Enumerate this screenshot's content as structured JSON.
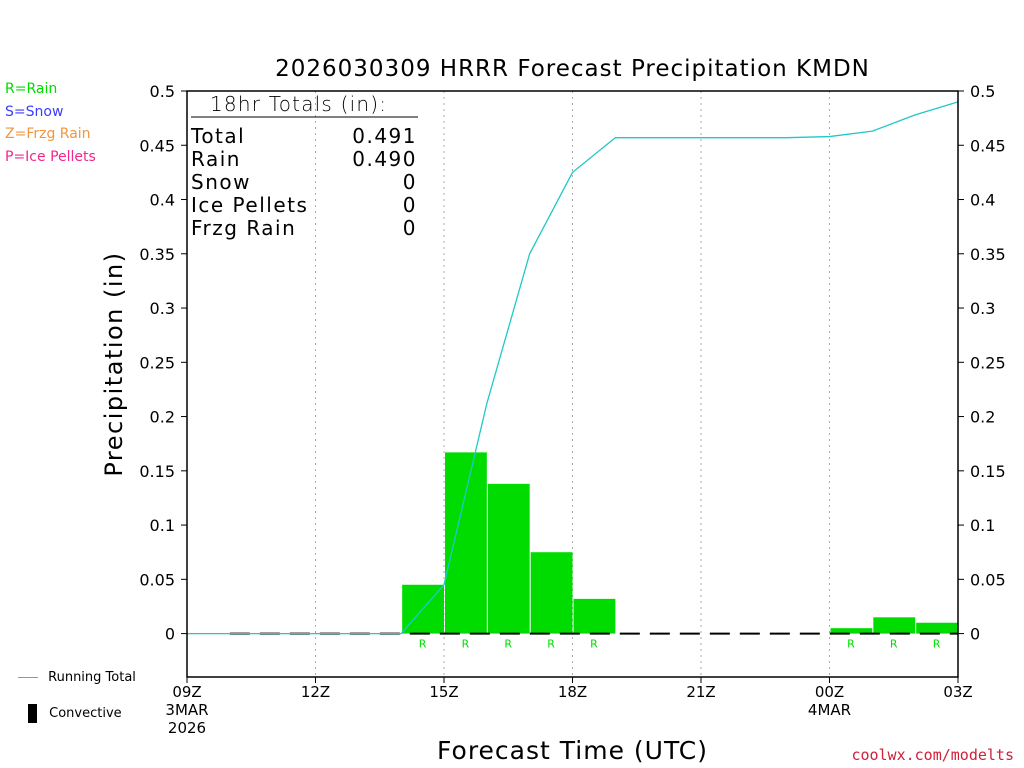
{
  "chart_data": {
    "type": "bar",
    "title": "2026030309 HRRR Forecast Precipitation KMDN",
    "xlabel": "Forecast Time (UTC)",
    "ylabel": "Precipitation (in)",
    "ylim": [
      -0.04,
      0.5
    ],
    "xlim": [
      9,
      27
    ],
    "y_ticks": [
      0,
      0.05,
      0.1,
      0.15,
      0.2,
      0.25,
      0.3,
      0.35,
      0.4,
      0.45,
      0.5
    ],
    "y_tick_labels": [
      "0",
      "0.05",
      "0.1",
      "0.15",
      "0.2",
      "0.25",
      "0.3",
      "0.35",
      "0.4",
      "0.45",
      "0.5"
    ],
    "x_ticks": [
      {
        "hour": 9,
        "lines": [
          "09Z",
          "3MAR",
          "2026"
        ]
      },
      {
        "hour": 12,
        "lines": [
          "12Z"
        ]
      },
      {
        "hour": 15,
        "lines": [
          "15Z"
        ]
      },
      {
        "hour": 18,
        "lines": [
          "18Z"
        ]
      },
      {
        "hour": 21,
        "lines": [
          "21Z"
        ]
      },
      {
        "hour": 24,
        "lines": [
          "00Z",
          "4MAR"
        ]
      },
      {
        "hour": 27,
        "lines": [
          "03Z"
        ]
      }
    ],
    "grid": "vertical dotted",
    "hourly_precip": [
      {
        "hour": 15,
        "value": 0.045,
        "type": "R"
      },
      {
        "hour": 16,
        "value": 0.167,
        "type": "R"
      },
      {
        "hour": 17,
        "value": 0.138,
        "type": "R"
      },
      {
        "hour": 18,
        "value": 0.075,
        "type": "R"
      },
      {
        "hour": 19,
        "value": 0.032,
        "type": "R"
      },
      {
        "hour": 25,
        "value": 0.005,
        "type": "R"
      },
      {
        "hour": 26,
        "value": 0.015,
        "type": "R"
      },
      {
        "hour": 27,
        "value": 0.01,
        "type": "R"
      }
    ],
    "running_total": {
      "name": "Running Total",
      "x": [
        9,
        10,
        11,
        12,
        13,
        14,
        15,
        16,
        17,
        18,
        19,
        20,
        21,
        22,
        23,
        24,
        25,
        26,
        27
      ],
      "y": [
        0,
        0,
        0,
        0,
        0,
        0,
        0.045,
        0.212,
        0.35,
        0.425,
        0.457,
        0.457,
        0.457,
        0.457,
        0.457,
        0.458,
        0.463,
        0.478,
        0.49
      ]
    },
    "totals_box": {
      "title": "18hr Totals (in):",
      "rows": [
        {
          "label": "Total",
          "value": "0.491"
        },
        {
          "label": "Rain",
          "value": "0.490"
        },
        {
          "label": "Snow",
          "value": "0"
        },
        {
          "label": "Ice Pellets",
          "value": "0"
        },
        {
          "label": "Frzg Rain",
          "value": "0"
        }
      ]
    },
    "colors": {
      "rain": "#00dc00",
      "snow": "#3c3cff",
      "freezing_rain": "#f09640",
      "ice_pellets": "#f0288c",
      "running_total": "#20c8c8",
      "axis": "#000000",
      "grid": "#aaaaaa"
    }
  },
  "type_legend": [
    {
      "label": "R=Rain",
      "color": "#00dc00"
    },
    {
      "label": "S=Snow",
      "color": "#3c3cff"
    },
    {
      "label": "Z=Frzg Rain",
      "color": "#f09640"
    },
    {
      "label": "P=Ice Pellets",
      "color": "#f0288c"
    }
  ],
  "bottom_legend": {
    "running_total_label": "Running Total",
    "convective_label": "Convective"
  },
  "credit": "coolwx.com/modelts"
}
